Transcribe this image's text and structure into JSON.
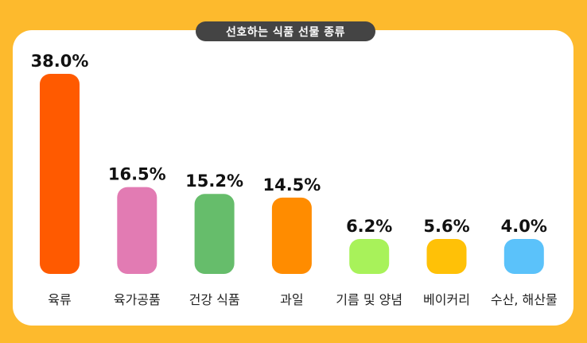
{
  "title": "선호하는 식품 선물 종류",
  "colors": {
    "background": "#FDBA2D",
    "card": "#FFFFFF",
    "title_pill": "#444444"
  },
  "chart_data": {
    "type": "bar",
    "title": "선호하는 식품 선물 종류",
    "categories": [
      "육류",
      "육가공품",
      "건강 식품",
      "과일",
      "기름 및 양념",
      "베이커리",
      "수산, 해산물"
    ],
    "values": [
      38.0,
      16.5,
      15.2,
      14.5,
      6.2,
      5.6,
      4.0
    ],
    "value_labels": [
      "38.0%",
      "16.5%",
      "15.2%",
      "14.5%",
      "6.2%",
      "5.6%",
      "4.0%"
    ],
    "colors": [
      "#FF5A00",
      "#E27BB3",
      "#66BD6B",
      "#FF8C00",
      "#A8F25A",
      "#FFC107",
      "#5BC2FA"
    ],
    "ylim": [
      0,
      38
    ],
    "grid": false,
    "legend": "none"
  }
}
